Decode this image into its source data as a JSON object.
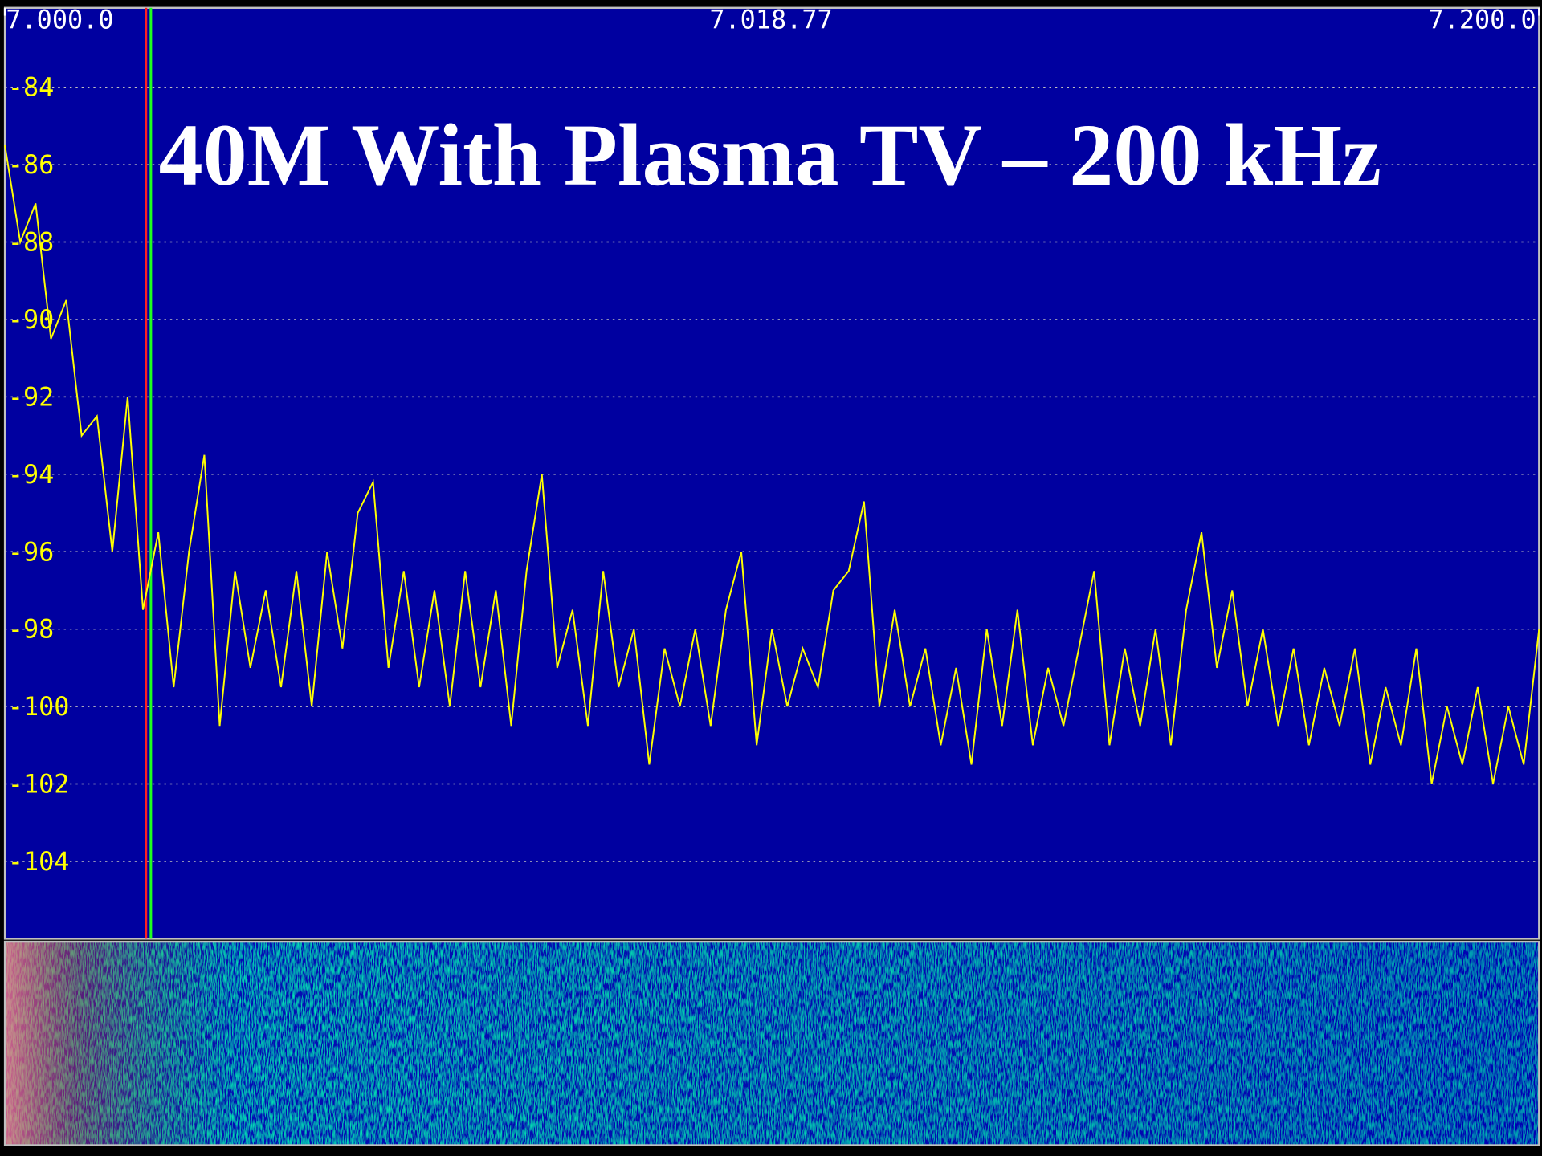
{
  "chart_data": {
    "type": "line",
    "title": "40M With Plasma TV – 200 kHz",
    "xlim": [
      7000,
      7200
    ],
    "xticks": [
      {
        "value": 7000,
        "label": "7.000.0"
      },
      {
        "value": 7200,
        "label": "7.200.0"
      }
    ],
    "marker": {
      "value": 7018.77,
      "label": "7.018.77"
    },
    "ylim": [
      -106,
      -82
    ],
    "yticks": [
      -84,
      -86,
      -88,
      -90,
      -92,
      -94,
      -96,
      -98,
      -100,
      -102,
      -104
    ],
    "grid": true,
    "series": [
      {
        "color": "#ffff00",
        "x": [
          7000,
          7002,
          7004,
          7006,
          7008,
          7010,
          7012,
          7014,
          7016,
          7018,
          7020,
          7022,
          7024,
          7026,
          7028,
          7030,
          7032,
          7034,
          7036,
          7038,
          7040,
          7042,
          7044,
          7046,
          7048,
          7050,
          7052,
          7054,
          7056,
          7058,
          7060,
          7062,
          7064,
          7066,
          7068,
          7070,
          7072,
          7074,
          7076,
          7078,
          7080,
          7082,
          7084,
          7086,
          7088,
          7090,
          7092,
          7094,
          7096,
          7098,
          7100,
          7102,
          7104,
          7106,
          7108,
          7110,
          7112,
          7114,
          7116,
          7118,
          7120,
          7122,
          7124,
          7126,
          7128,
          7130,
          7132,
          7134,
          7136,
          7138,
          7140,
          7142,
          7144,
          7146,
          7148,
          7150,
          7152,
          7154,
          7156,
          7158,
          7160,
          7162,
          7164,
          7166,
          7168,
          7170,
          7172,
          7174,
          7176,
          7178,
          7180,
          7182,
          7184,
          7186,
          7188,
          7190,
          7192,
          7194,
          7196,
          7198,
          7200
        ],
        "values": [
          -85.5,
          -88,
          -87,
          -90.5,
          -89.5,
          -93,
          -92.5,
          -96,
          -92,
          -97.5,
          -95.5,
          -99.5,
          -96,
          -93.5,
          -100.5,
          -96.5,
          -99,
          -97,
          -99.5,
          -96.5,
          -100,
          -96,
          -98.5,
          -95,
          -94.2,
          -99,
          -96.5,
          -99.5,
          -97,
          -100,
          -96.5,
          -99.5,
          -97,
          -100.5,
          -96.5,
          -94,
          -99,
          -97.5,
          -100.5,
          -96.5,
          -99.5,
          -98,
          -101.5,
          -98.5,
          -100,
          -98,
          -100.5,
          -97.5,
          -96,
          -101,
          -98,
          -100,
          -98.5,
          -99.5,
          -97,
          -96.5,
          -94.7,
          -100,
          -97.5,
          -100,
          -98.5,
          -101,
          -99,
          -101.5,
          -98,
          -100.5,
          -97.5,
          -101,
          -99,
          -100.5,
          -98.5,
          -96.5,
          -101,
          -98.5,
          -100.5,
          -98,
          -101,
          -97.5,
          -95.5,
          -99,
          -97,
          -100,
          -98,
          -100.5,
          -98.5,
          -101,
          -99,
          -100.5,
          -98.5,
          -101.5,
          -99.5,
          -101,
          -98.5,
          -102,
          -100,
          -101.5,
          -99.5,
          -102,
          -100,
          -101.5,
          -98
        ]
      }
    ]
  }
}
